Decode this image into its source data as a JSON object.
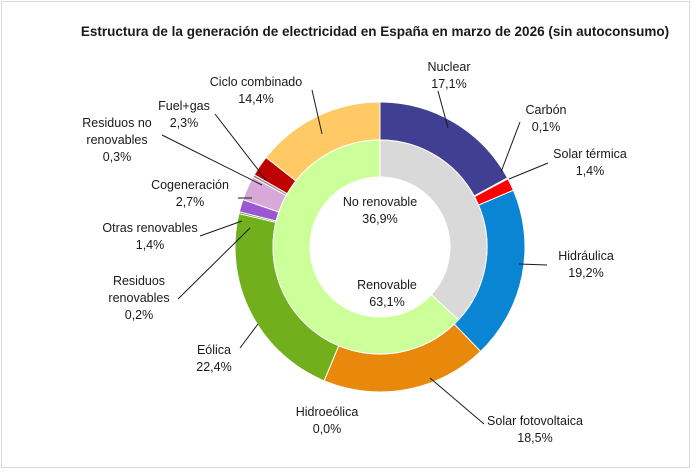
{
  "chart_data": {
    "type": "pie",
    "title": "Estructura de la generación de electricidad en España en marzo de 2026 (sin autoconsumo)",
    "inner_ring": [
      {
        "label": "No renovable",
        "value_text": "36,9%",
        "value": 36.9,
        "color": "#d9d9d9"
      },
      {
        "label": "Renovable",
        "value_text": "63,1%",
        "value": 63.1,
        "color": "#ccff99"
      }
    ],
    "outer_ring": [
      {
        "label": "Nuclear",
        "value_text": "17,1%",
        "value": 17.1,
        "color": "#403f91"
      },
      {
        "label": "Carbón",
        "value_text": "0,1%",
        "value": 0.1,
        "color": "#262626"
      },
      {
        "label": "Solar térmica",
        "value_text": "1,4%",
        "value": 1.4,
        "color": "#ff0000"
      },
      {
        "label": "Hidráulica",
        "value_text": "19,2%",
        "value": 19.2,
        "color": "#0a85d4"
      },
      {
        "label": "Solar fotovoltaica",
        "value_text": "18,5%",
        "value": 18.5,
        "color": "#e8890c"
      },
      {
        "label": "Hidroeólica",
        "value_text": "0,0%",
        "value": 0.0,
        "color": "#3b6e12"
      },
      {
        "label": "Eólica",
        "value_text": "22,4%",
        "value": 22.4,
        "color": "#71af1d"
      },
      {
        "label": "Residuos renovables",
        "value_text": "0,2%",
        "value": 0.2,
        "color": "#4b8a16"
      },
      {
        "label": "Otras renovables",
        "value_text": "1,4%",
        "value": 1.4,
        "color": "#9a57d0"
      },
      {
        "label": "Cogeneración",
        "value_text": "2,7%",
        "value": 2.7,
        "color": "#d8a8d8"
      },
      {
        "label": "Residuos no renovables",
        "value_text": "0,3%",
        "value": 0.3,
        "color": "#8c8c8c"
      },
      {
        "label": "Fuel+gas",
        "value_text": "2,3%",
        "value": 2.3,
        "color": "#c00000"
      },
      {
        "label": "Ciclo combinado",
        "value_text": "14,4%",
        "value": 14.4,
        "color": "#ffc966"
      }
    ]
  }
}
